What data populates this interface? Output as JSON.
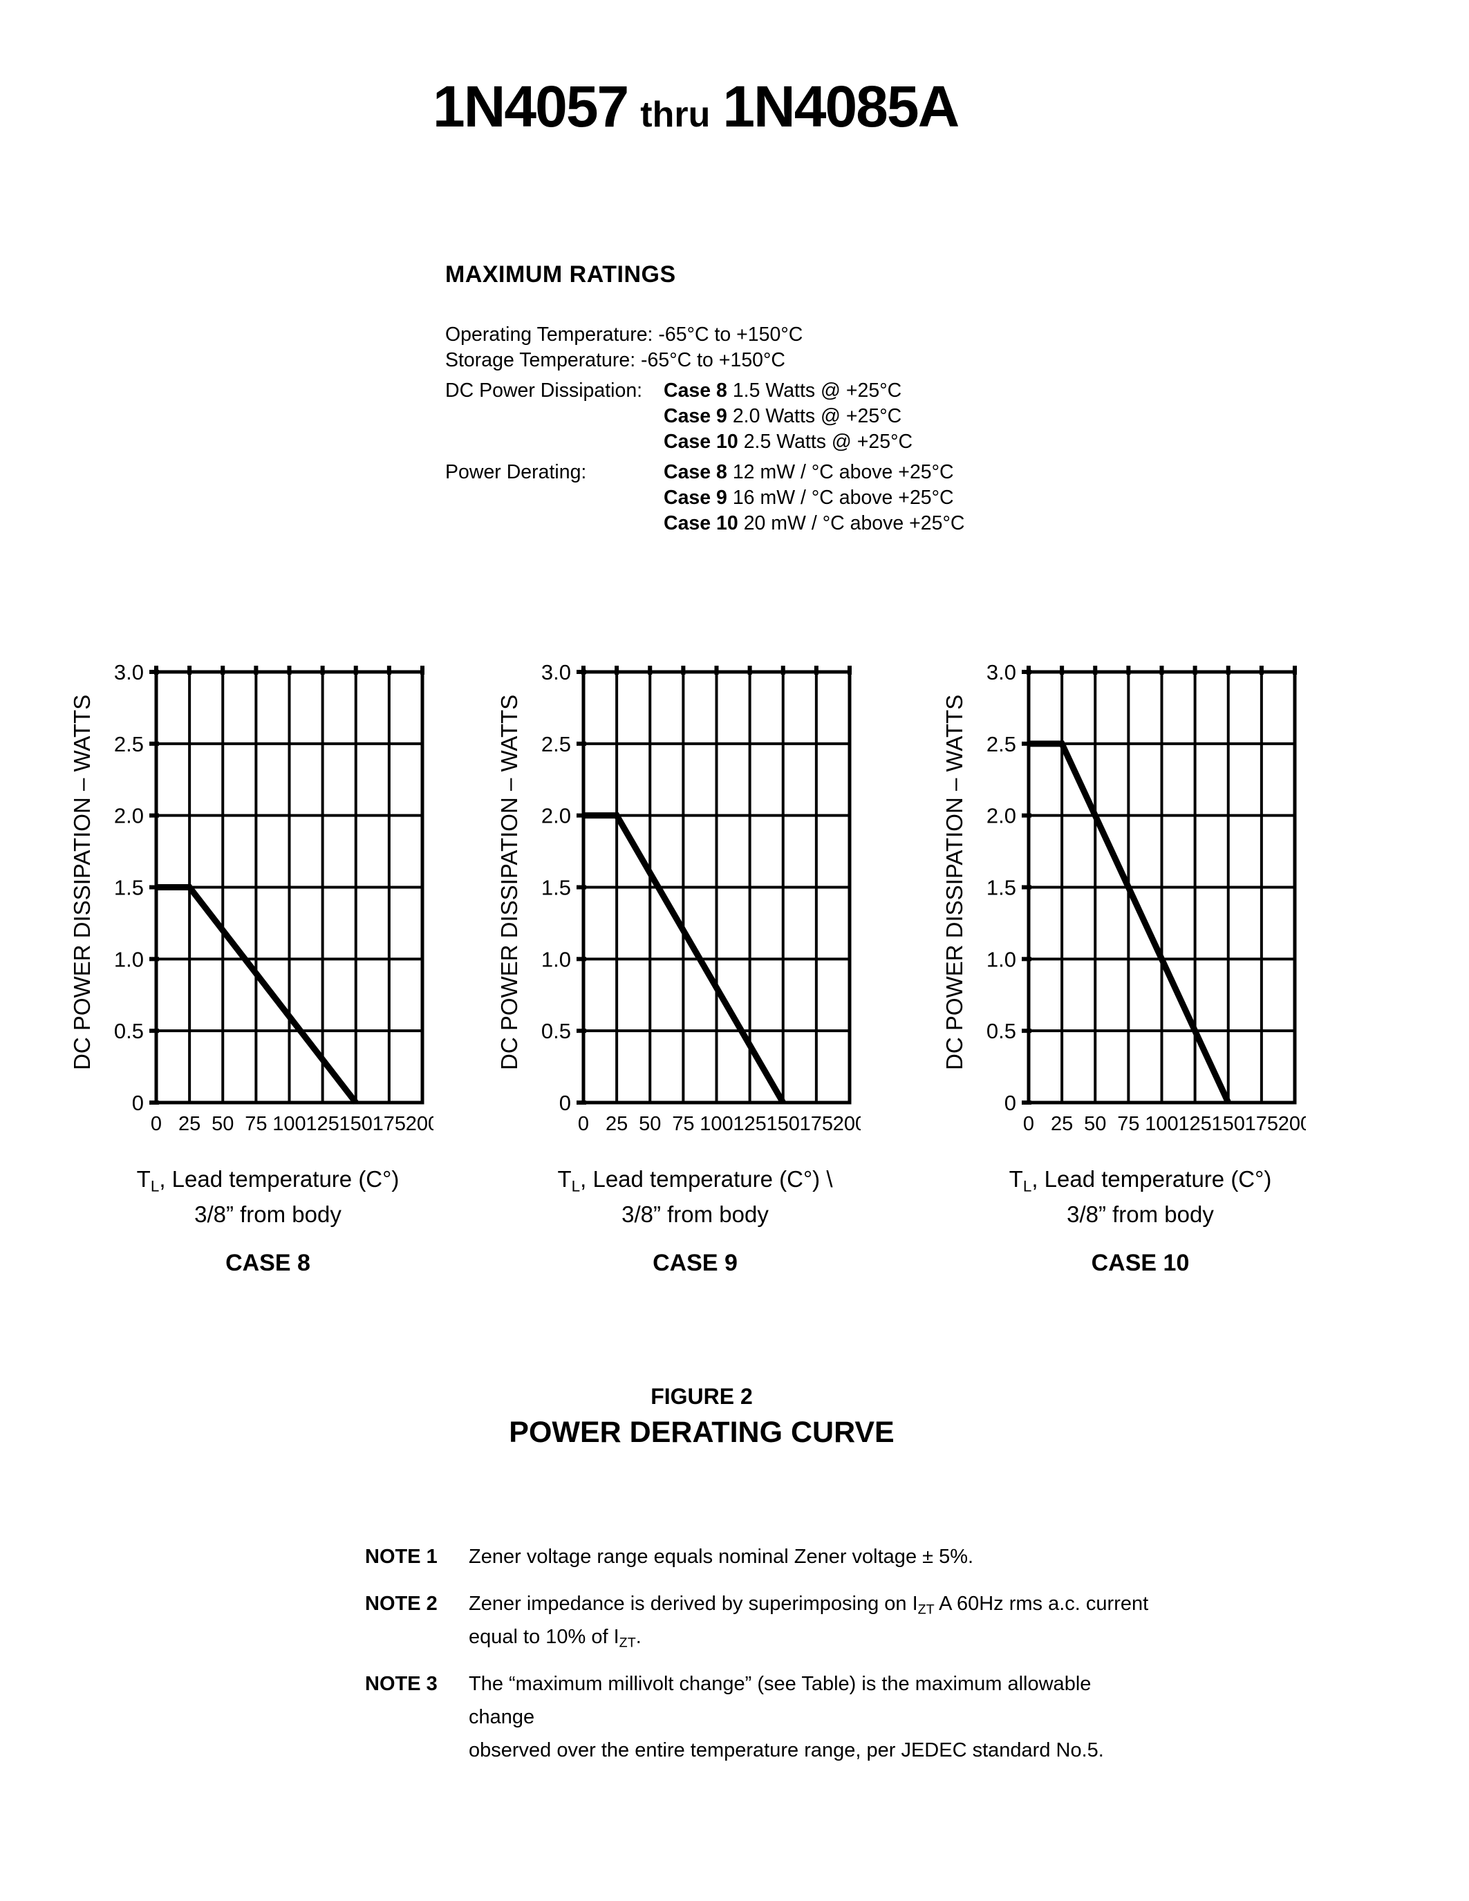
{
  "colors": {
    "ink": "#000000",
    "paper": "#ffffff"
  },
  "title": {
    "part1": "1N4057",
    "part2": "thru",
    "part3": "1N4085A"
  },
  "max_ratings": {
    "heading": "MAXIMUM RATINGS",
    "line1": "Operating Temperature: -65°C to +150°C",
    "line2": "Storage Temperature: -65°C to +150°C",
    "dc_power": {
      "label": "DC Power Dissipation:",
      "entries": [
        {
          "case": "Case 8",
          "value": "1.5 Watts @ +25°C"
        },
        {
          "case": "Case 9",
          "value": "2.0 Watts @ +25°C"
        },
        {
          "case": "Case 10",
          "value": "2.5 Watts @ +25°C"
        }
      ]
    },
    "power_derating": {
      "label": "Power Derating:",
      "entries": [
        {
          "case": "Case 8",
          "value": "12 mW / °C above +25°C"
        },
        {
          "case": "Case 9",
          "value": "16 mW / °C above +25°C"
        },
        {
          "case": "Case 10",
          "value": "20 mW / °C above +25°C"
        }
      ]
    }
  },
  "figure": {
    "number": "FIGURE 2",
    "title": "POWER DERATING CURVE"
  },
  "notes": [
    {
      "label": "NOTE 1",
      "segments": [
        {
          "t": "Zener voltage range equals nominal Zener voltage ± 5%."
        }
      ]
    },
    {
      "label": "NOTE 2",
      "segments": [
        {
          "t": "Zener impedance is derived by superimposing on I"
        },
        {
          "t": "ZT",
          "sub": true
        },
        {
          "t": " A 60Hz rms a.c. current"
        },
        {
          "br": true
        },
        {
          "t": "equal to 10% of I"
        },
        {
          "t": "ZT",
          "sub": true
        },
        {
          "t": "."
        }
      ]
    },
    {
      "label": "NOTE 3",
      "segments": [
        {
          "t": "The “maximum millivolt change” (see Table) is the maximum allowable change"
        },
        {
          "br": true
        },
        {
          "t": "observed over the entire temperature range, per JEDEC standard No.5."
        }
      ]
    }
  ],
  "chart_data": [
    {
      "type": "line",
      "case_label": "CASE 8",
      "ylabel": "DC POWER DISSIPATION – WATTS",
      "xlabel_segments": [
        {
          "t": "T"
        },
        {
          "t": "L",
          "sub": true
        },
        {
          "t": ", Lead temperature (C°)"
        }
      ],
      "xlabel_line2": "3/8” from body",
      "series": [
        {
          "name": "derating",
          "x": [
            0,
            25,
            150
          ],
          "y": [
            1.5,
            1.5,
            0
          ]
        }
      ],
      "xlim": [
        0,
        200
      ],
      "ylim": [
        0,
        3
      ],
      "xticks": [
        0,
        25,
        50,
        75,
        100,
        125,
        150,
        175,
        200
      ],
      "xtick_labels": [
        "0",
        "25",
        "50",
        "75",
        "100",
        "125",
        "150",
        "175",
        "200"
      ],
      "yticks": [
        0,
        0.5,
        1,
        1.5,
        2,
        2.5,
        3
      ],
      "ytick_labels": [
        "0",
        "0.5",
        "1.0",
        "1.5",
        "2.0",
        "2.5",
        "3.0"
      ],
      "grid": true
    },
    {
      "type": "line",
      "case_label": "CASE 9",
      "ylabel": "DC POWER DISSIPATION – WATTS",
      "xlabel_segments": [
        {
          "t": "T"
        },
        {
          "t": "L",
          "sub": true
        },
        {
          "t": ", Lead temperature (C°)  \\"
        }
      ],
      "xlabel_line2": "3/8” from body",
      "series": [
        {
          "name": "derating",
          "x": [
            0,
            25,
            150
          ],
          "y": [
            2.0,
            2.0,
            0
          ]
        }
      ],
      "xlim": [
        0,
        200
      ],
      "ylim": [
        0,
        3
      ],
      "xticks": [
        0,
        25,
        50,
        75,
        100,
        125,
        150,
        175,
        200
      ],
      "xtick_labels": [
        "0",
        "25",
        "50",
        "75",
        "100",
        "125",
        "150",
        "175",
        "200"
      ],
      "yticks": [
        0,
        0.5,
        1,
        1.5,
        2,
        2.5,
        3
      ],
      "ytick_labels": [
        "0",
        "0.5",
        "1.0",
        "1.5",
        "2.0",
        "2.5",
        "3.0"
      ],
      "grid": true
    },
    {
      "type": "line",
      "case_label": "CASE 10",
      "ylabel": "DC POWER DISSIPATION – WATTS",
      "xlabel_segments": [
        {
          "t": "T"
        },
        {
          "t": "L",
          "sub": true
        },
        {
          "t": ", Lead temperature (C°)"
        }
      ],
      "xlabel_line2": "3/8” from body",
      "series": [
        {
          "name": "derating",
          "x": [
            0,
            25,
            150
          ],
          "y": [
            2.5,
            2.5,
            0
          ]
        }
      ],
      "xlim": [
        0,
        200
      ],
      "ylim": [
        0,
        3
      ],
      "xticks": [
        0,
        25,
        50,
        75,
        100,
        125,
        150,
        175,
        200
      ],
      "xtick_labels": [
        "0",
        "25",
        "50",
        "75",
        "100",
        "125",
        "150",
        "175",
        "200"
      ],
      "yticks": [
        0,
        0.5,
        1,
        1.5,
        2,
        2.5,
        3
      ],
      "ytick_labels": [
        "0",
        "0.5",
        "1.0",
        "1.5",
        "2.0",
        "2.5",
        "3.0"
      ],
      "grid": true
    }
  ]
}
